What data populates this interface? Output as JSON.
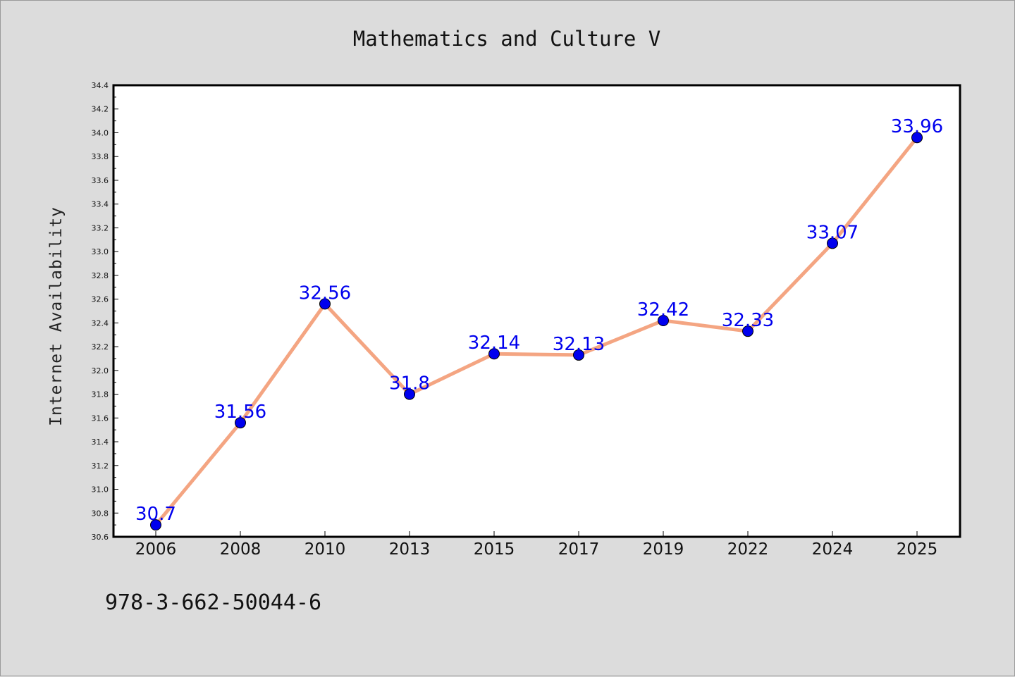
{
  "chart_data": {
    "type": "line",
    "title": "Mathematics and Culture V",
    "ylabel": "Internet Availability",
    "xlabel": "",
    "categories": [
      "2006",
      "2008",
      "2010",
      "2013",
      "2015",
      "2017",
      "2019",
      "2022",
      "2024",
      "2025"
    ],
    "series": [
      {
        "values": [
          30.7,
          31.56,
          32.56,
          31.8,
          32.14,
          32.13,
          32.42,
          32.33,
          33.07,
          33.96
        ],
        "labels": [
          "30.7",
          "31.56",
          "32.56",
          "31.8",
          "32.14",
          "32.13",
          "32.42",
          "32.33",
          "33.07",
          "33.96"
        ],
        "line_color": "#f4a582",
        "marker_color": "#0000ee"
      }
    ],
    "ylim": [
      30.6,
      34.4
    ],
    "yticks": [
      "30.6",
      "30.8",
      "31.0",
      "31.2",
      "31.4",
      "31.6",
      "31.8",
      "32.0",
      "32.2",
      "32.4",
      "32.6",
      "32.8",
      "33.0",
      "33.2",
      "33.4",
      "33.6",
      "33.8",
      "34.0",
      "34.2",
      "34.4"
    ],
    "grid": false,
    "legend": "none"
  },
  "footer": {
    "isbn": "978-3-662-50044-6"
  }
}
